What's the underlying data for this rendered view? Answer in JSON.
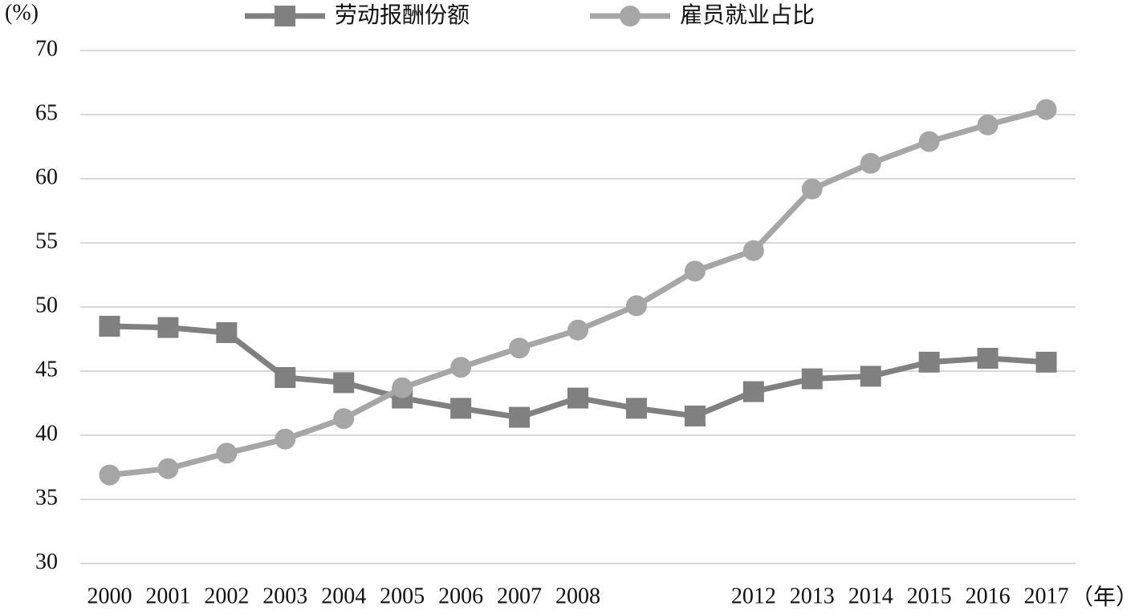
{
  "chart_data": {
    "type": "line",
    "y_label": "(%)",
    "x_label": "（年）",
    "categories": [
      "2000",
      "2001",
      "2002",
      "2003",
      "2004",
      "2005",
      "2006",
      "2007",
      "2008",
      null,
      null,
      "2012",
      "2013",
      "2014",
      "2015",
      "2016",
      "2017"
    ],
    "series": [
      {
        "name": "劳动报酬份额",
        "color": "#808080",
        "marker": "square",
        "values": [
          48.5,
          48.4,
          48.0,
          44.5,
          44.1,
          42.9,
          42.1,
          41.4,
          42.9,
          42.1,
          41.5,
          43.4,
          44.4,
          44.6,
          45.7,
          46.0,
          45.7
        ]
      },
      {
        "name": "雇员就业占比",
        "color": "#a6a6a6",
        "marker": "circle",
        "values": [
          36.9,
          37.4,
          38.6,
          39.7,
          41.3,
          43.7,
          45.3,
          46.8,
          48.2,
          50.1,
          52.8,
          54.4,
          59.2,
          61.2,
          62.9,
          64.2,
          65.4
        ]
      }
    ],
    "ylim": [
      30,
      70
    ],
    "yticks": [
      30,
      35,
      40,
      45,
      50,
      55,
      60,
      65,
      70
    ],
    "grid": true
  }
}
